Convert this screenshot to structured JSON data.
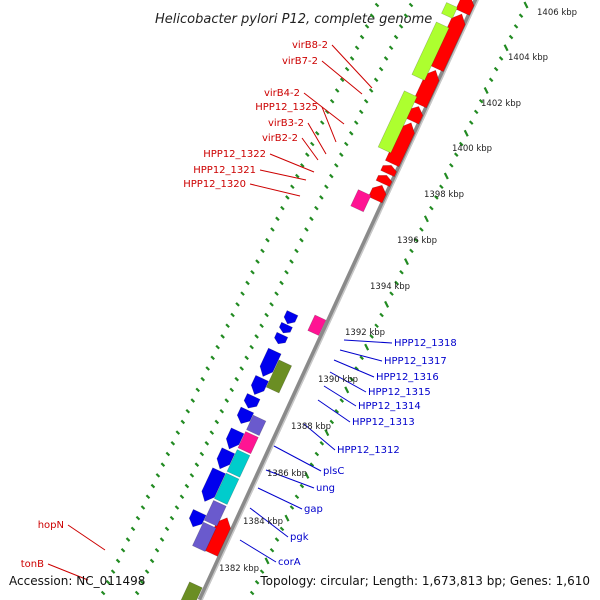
{
  "title": "Helicobacter pylori P12, complete genome",
  "footer": {
    "accession_label": "Accession:",
    "accession": "NC_011498",
    "topology_label": "Topology:",
    "topology": "circular",
    "length_label": "Length:",
    "length": "1,673,813 bp",
    "genes_label": "Genes:",
    "genes": "1,610"
  },
  "colors": {
    "backbone": "#808080",
    "tick": "#228B22",
    "forward_label": "#cc0000",
    "reverse_label": "#0000cc",
    "red": "#ff0000",
    "lime": "#adff2f",
    "blue": "#0000ee",
    "magenta": "#ff1493",
    "olive": "#6b8e23",
    "violet": "#6a5acd",
    "cyan": "#00cccc"
  },
  "scale_ticks": [
    {
      "label": "1406 kbp"
    },
    {
      "label": "1404 kbp"
    },
    {
      "label": "1402 kbp"
    },
    {
      "label": "1400 kbp"
    },
    {
      "label": "1398 kbp"
    },
    {
      "label": "1396 kbp"
    },
    {
      "label": "1394 kbp"
    },
    {
      "label": "1392 kbp"
    },
    {
      "label": "1390 kbp"
    },
    {
      "label": "1388 kbp"
    },
    {
      "label": "1386 kbp"
    },
    {
      "label": "1384 kbp"
    },
    {
      "label": "1382 kbp"
    }
  ],
  "forward_labels": [
    "virB8-2",
    "virB7-2",
    "virB4-2",
    "HPP12_1325",
    "virB3-2",
    "virB2-2",
    "HPP12_1322",
    "HPP12_1321",
    "HPP12_1320",
    "hopN",
    "tonB"
  ],
  "reverse_labels": [
    "HPP12_1318",
    "HPP12_1317",
    "HPP12_1316",
    "HPP12_1315",
    "HPP12_1314",
    "HPP12_1313",
    "HPP12_1312",
    "plsC",
    "ung",
    "gap",
    "pgk",
    "corA"
  ]
}
